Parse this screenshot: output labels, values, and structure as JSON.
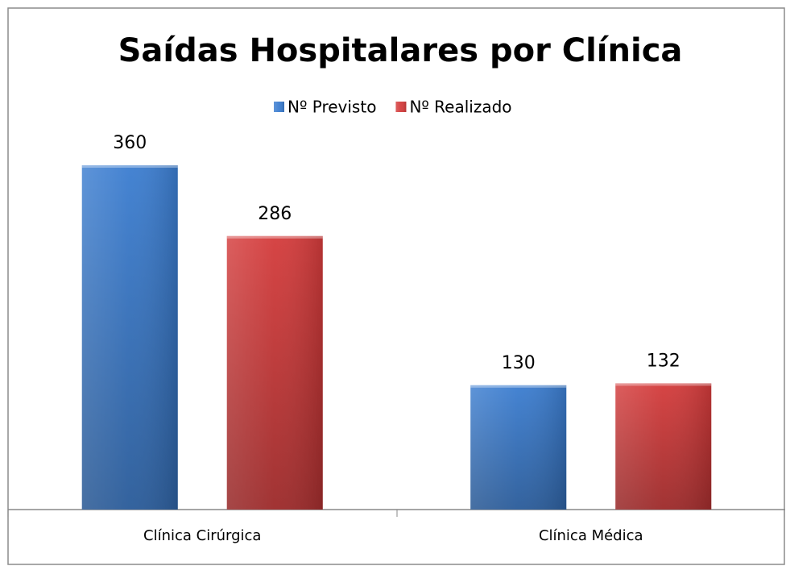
{
  "chart_data": {
    "type": "bar",
    "title": "Saídas Hospitalares por Clínica",
    "categories": [
      "Clínica Cirúrgica",
      "Clínica Médica"
    ],
    "series": [
      {
        "name": "Nº Previsto",
        "color": "#3b7dd0",
        "values": [
          360,
          130
        ]
      },
      {
        "name": "Nº Realizado",
        "color": "#d43b3b",
        "values": [
          286,
          132
        ]
      }
    ],
    "legend": "top"
  }
}
